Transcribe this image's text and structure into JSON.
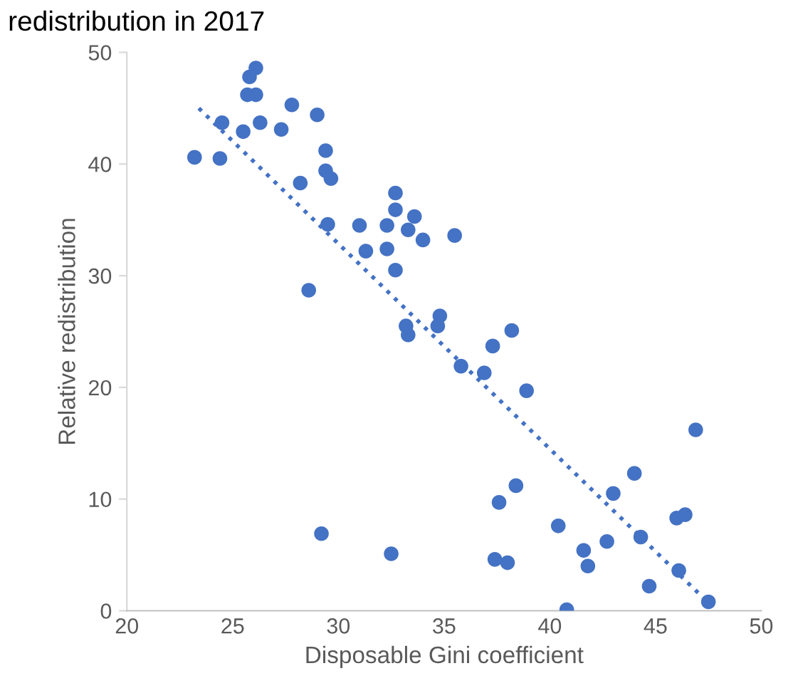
{
  "chart_data": {
    "type": "scatter",
    "title": "redistribution in 2017",
    "xlabel": "Disposable Gini coefficient",
    "ylabel": "Relative redistribution",
    "xlim": [
      20,
      50
    ],
    "xticks": [
      20,
      25,
      30,
      35,
      40,
      45,
      50
    ],
    "ylim": [
      0,
      50
    ],
    "yticks": [
      0,
      10,
      20,
      30,
      40,
      50
    ],
    "grid": false,
    "marker": "circle",
    "series": [
      {
        "color": "#4472c4",
        "x": [
          23.2,
          24.5,
          24.4,
          25.5,
          25.8,
          26.1,
          25.7,
          26.1,
          26.3,
          27.3,
          27.8,
          28.2,
          29.0,
          29.4,
          29.4,
          29.65,
          29.5,
          28.6,
          29.2,
          31.0,
          31.3,
          32.3,
          32.3,
          32.7,
          32.7,
          32.7,
          33.3,
          33.6,
          34.0,
          35.5,
          33.2,
          33.3,
          34.8,
          34.7,
          35.8,
          36.9,
          37.3,
          38.2,
          38.9,
          32.5,
          37.6,
          38.4,
          37.4,
          38.0,
          40.4,
          40.8,
          41.6,
          41.8,
          42.7,
          43.0,
          44.0,
          44.3,
          44.7,
          46.0,
          46.4,
          46.1,
          46.9,
          47.5
        ],
        "values": [
          40.6,
          43.7,
          40.5,
          42.9,
          47.8,
          46.2,
          46.2,
          48.6,
          43.7,
          43.1,
          45.3,
          38.3,
          44.4,
          41.2,
          39.4,
          38.7,
          34.6,
          28.7,
          6.9,
          34.5,
          32.2,
          34.5,
          32.4,
          37.4,
          35.9,
          30.5,
          34.1,
          35.3,
          33.2,
          33.6,
          25.5,
          24.7,
          26.4,
          25.5,
          21.9,
          21.3,
          23.7,
          25.1,
          19.7,
          5.1,
          9.7,
          11.2,
          4.6,
          4.3,
          7.6,
          0.1,
          5.4,
          4.0,
          6.2,
          10.5,
          12.3,
          6.6,
          2.2,
          8.3,
          8.6,
          3.6,
          16.2,
          0.8
        ]
      },
      {
        "type": "line",
        "color": "#4472c4",
        "line_style": "dotted",
        "marker": "none",
        "x": [
          23.4,
          47.4
        ],
        "values": [
          45.0,
          0.9
        ]
      }
    ]
  }
}
